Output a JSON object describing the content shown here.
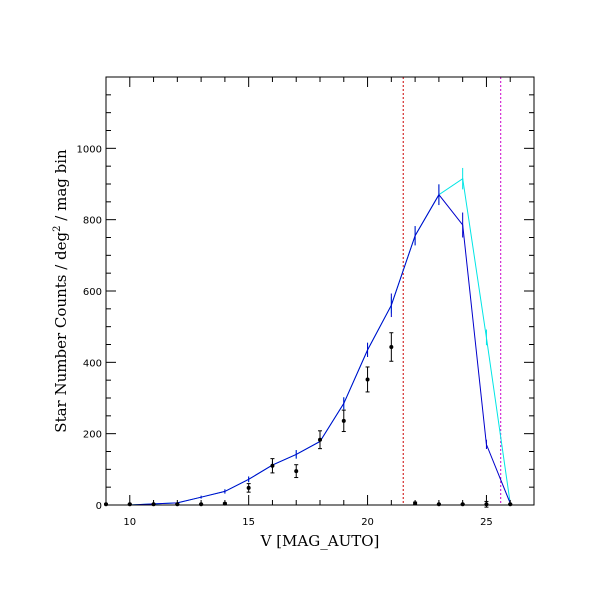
{
  "chart_data": {
    "type": "line",
    "title": "",
    "xlabel": "V [MAG_AUTO]",
    "ylabel_parts": {
      "main": "Star Number Counts / deg",
      "sup": "2",
      "tail": " / mag bin"
    },
    "xlim": [
      9,
      27
    ],
    "ylim": [
      0,
      1200
    ],
    "x_ticks": [
      10,
      15,
      20,
      25
    ],
    "y_ticks": [
      0,
      200,
      400,
      600,
      800,
      1000
    ],
    "series": [
      {
        "color": "#00e5e5",
        "x": [
          9,
          10,
          11,
          12,
          13,
          14,
          15,
          16,
          17,
          18,
          19,
          20,
          21,
          22,
          23,
          24,
          25,
          26
        ],
        "y": [
          0,
          0,
          3,
          6,
          22,
          38,
          72,
          112,
          142,
          178,
          285,
          435,
          560,
          755,
          870,
          915,
          470,
          5
        ],
        "yerr": [
          0,
          0,
          2,
          2,
          4,
          6,
          8,
          10,
          12,
          13,
          17,
          20,
          23,
          27,
          29,
          30,
          22,
          2
        ]
      },
      {
        "color": "#0000cc",
        "x": [
          9,
          10,
          11,
          12,
          13,
          14,
          15,
          16,
          17,
          18,
          19,
          20,
          21,
          22,
          23,
          24,
          25,
          26
        ],
        "y": [
          0,
          0,
          3,
          6,
          22,
          38,
          72,
          112,
          142,
          178,
          285,
          435,
          560,
          755,
          870,
          785,
          170,
          5
        ],
        "yerr": [
          0,
          0,
          2,
          2,
          4,
          6,
          8,
          10,
          12,
          13,
          17,
          20,
          33,
          27,
          29,
          35,
          13,
          2
        ]
      },
      {
        "color": "#000000",
        "markers": true,
        "x": [
          9,
          10,
          11,
          12,
          13,
          14,
          15,
          16,
          17,
          18,
          19,
          20,
          21,
          22,
          23,
          24,
          25,
          26
        ],
        "y": [
          2,
          2,
          2,
          2,
          2,
          4,
          48,
          110,
          95,
          183,
          236,
          352,
          443,
          5,
          2,
          2,
          2,
          2
        ],
        "yerr": [
          1,
          1,
          1,
          1,
          1,
          2,
          12,
          20,
          18,
          25,
          30,
          35,
          40,
          3,
          1,
          1,
          8,
          1
        ]
      }
    ],
    "vlines": [
      {
        "x": 21.5,
        "color": "#cc0000"
      },
      {
        "x": 25.6,
        "color": "#cc00cc"
      }
    ],
    "grid": false
  }
}
